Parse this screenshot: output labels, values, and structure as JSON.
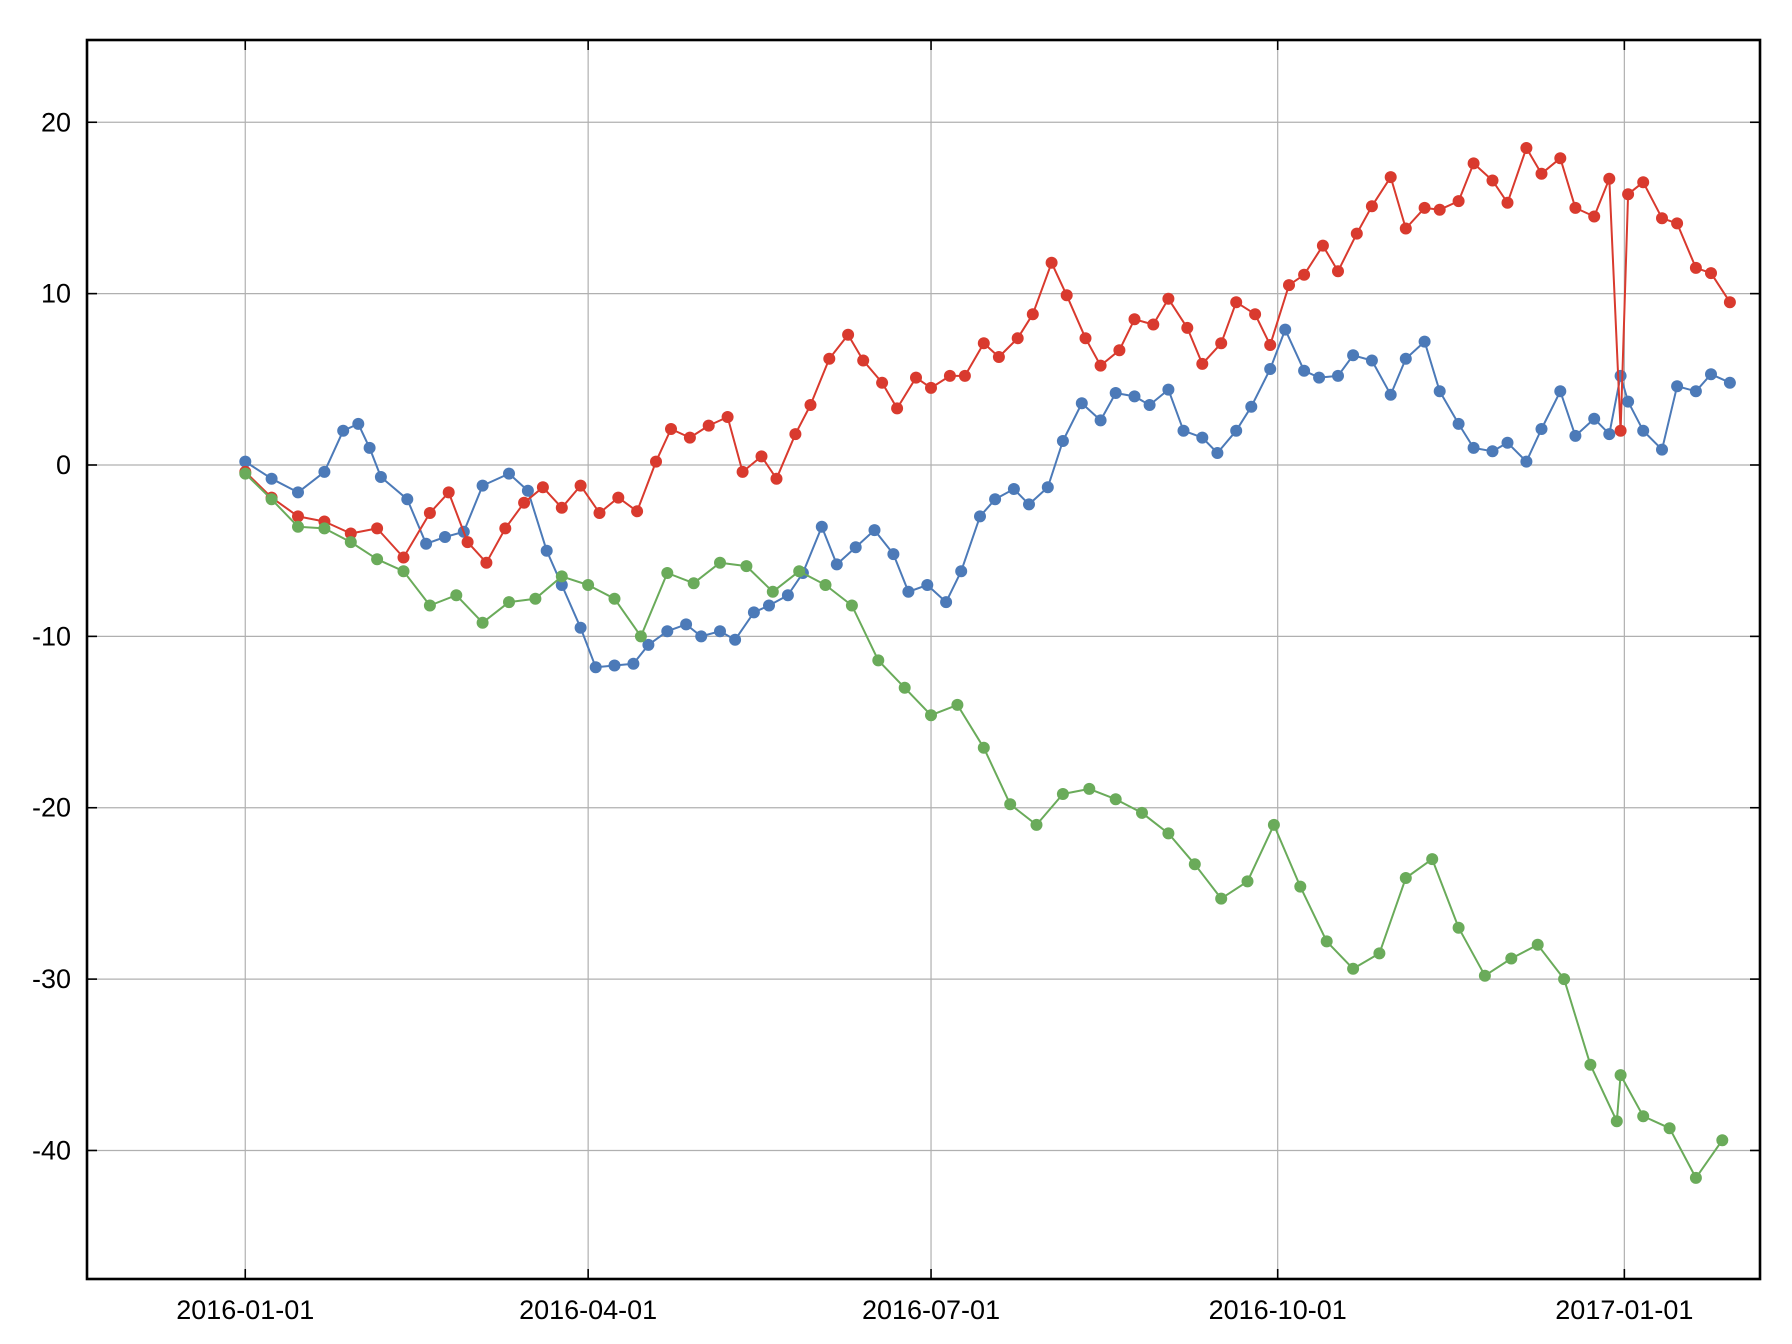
{
  "chart_data": {
    "type": "line",
    "title": "",
    "xlabel": "",
    "ylabel": "",
    "x_axis": {
      "type": "date",
      "range": [
        "2015-11-20",
        "2017-02-06"
      ],
      "ticks": [
        "2016-01-01",
        "2016-04-01",
        "2016-07-01",
        "2016-10-01",
        "2017-01-01"
      ],
      "tick_labels": [
        "2016-01-01",
        "2016-04-01",
        "2016-07-01",
        "2016-10-01",
        "2017-01-01"
      ]
    },
    "y_axis": {
      "range": [
        -47.5,
        24.8
      ],
      "ticks": [
        20,
        10,
        0,
        -10,
        -20,
        -30,
        -40
      ],
      "tick_labels": [
        "20",
        "10",
        "0",
        "-10",
        "-20",
        "-30",
        "-40"
      ]
    },
    "grid": true,
    "legend": null,
    "markers": "filled circles",
    "series": [
      {
        "color": "#4c7ab8",
        "points": [
          [
            "2016-01-01",
            0.2
          ],
          [
            "2016-01-08",
            -0.8
          ],
          [
            "2016-01-15",
            -1.6
          ],
          [
            "2016-01-22",
            -0.4
          ],
          [
            "2016-01-27",
            2.0
          ],
          [
            "2016-01-31",
            2.4
          ],
          [
            "2016-02-03",
            1.0
          ],
          [
            "2016-02-06",
            -0.7
          ],
          [
            "2016-02-13",
            -2.0
          ],
          [
            "2016-02-18",
            -4.6
          ],
          [
            "2016-02-23",
            -4.2
          ],
          [
            "2016-02-28",
            -3.9
          ],
          [
            "2016-03-04",
            -1.2
          ],
          [
            "2016-03-11",
            -0.5
          ],
          [
            "2016-03-16",
            -1.5
          ],
          [
            "2016-03-21",
            -5.0
          ],
          [
            "2016-03-25",
            -7.0
          ],
          [
            "2016-03-30",
            -9.5
          ],
          [
            "2016-04-03",
            -11.8
          ],
          [
            "2016-04-08",
            -11.7
          ],
          [
            "2016-04-13",
            -11.6
          ],
          [
            "2016-04-17",
            -10.5
          ],
          [
            "2016-04-22",
            -9.7
          ],
          [
            "2016-04-27",
            -9.3
          ],
          [
            "2016-05-01",
            -10.0
          ],
          [
            "2016-05-06",
            -9.7
          ],
          [
            "2016-05-10",
            -10.2
          ],
          [
            "2016-05-15",
            -8.6
          ],
          [
            "2016-05-19",
            -8.2
          ],
          [
            "2016-05-24",
            -7.6
          ],
          [
            "2016-05-28",
            -6.3
          ],
          [
            "2016-06-02",
            -3.6
          ],
          [
            "2016-06-06",
            -5.8
          ],
          [
            "2016-06-11",
            -4.8
          ],
          [
            "2016-06-16",
            -3.8
          ],
          [
            "2016-06-21",
            -5.2
          ],
          [
            "2016-06-25",
            -7.4
          ],
          [
            "2016-06-30",
            -7.0
          ],
          [
            "2016-07-05",
            -8.0
          ],
          [
            "2016-07-09",
            -6.2
          ],
          [
            "2016-07-14",
            -3.0
          ],
          [
            "2016-07-18",
            -2.0
          ],
          [
            "2016-07-23",
            -1.4
          ],
          [
            "2016-07-27",
            -2.3
          ],
          [
            "2016-08-01",
            -1.3
          ],
          [
            "2016-08-05",
            1.4
          ],
          [
            "2016-08-10",
            3.6
          ],
          [
            "2016-08-15",
            2.6
          ],
          [
            "2016-08-19",
            4.2
          ],
          [
            "2016-08-24",
            4.0
          ],
          [
            "2016-08-28",
            3.5
          ],
          [
            "2016-09-02",
            4.4
          ],
          [
            "2016-09-06",
            2.0
          ],
          [
            "2016-09-11",
            1.6
          ],
          [
            "2016-09-15",
            0.7
          ],
          [
            "2016-09-20",
            2.0
          ],
          [
            "2016-09-24",
            3.4
          ],
          [
            "2016-09-29",
            5.6
          ],
          [
            "2016-10-03",
            7.9
          ],
          [
            "2016-10-08",
            5.5
          ],
          [
            "2016-10-12",
            5.1
          ],
          [
            "2016-10-17",
            5.2
          ],
          [
            "2016-10-21",
            6.4
          ],
          [
            "2016-10-26",
            6.1
          ],
          [
            "2016-10-31",
            4.1
          ],
          [
            "2016-11-04",
            6.2
          ],
          [
            "2016-11-09",
            7.2
          ],
          [
            "2016-11-13",
            4.3
          ],
          [
            "2016-11-18",
            2.4
          ],
          [
            "2016-11-22",
            1.0
          ],
          [
            "2016-11-27",
            0.8
          ],
          [
            "2016-12-01",
            1.3
          ],
          [
            "2016-12-06",
            0.2
          ],
          [
            "2016-12-10",
            2.1
          ],
          [
            "2016-12-15",
            4.3
          ],
          [
            "2016-12-19",
            1.7
          ],
          [
            "2016-12-24",
            2.7
          ],
          [
            "2016-12-28",
            1.8
          ],
          [
            "2017-01-02",
            3.7
          ],
          [
            "2017-01-06",
            2.0
          ],
          [
            "2017-01-11",
            0.9
          ],
          [
            "2017-01-15",
            4.6
          ],
          [
            "2017-01-20",
            4.3
          ],
          [
            "2017-01-24",
            5.3
          ],
          [
            "2017-01-29",
            4.8
          ],
          [
            "2016-12-31",
            5.2
          ]
        ]
      },
      {
        "color": "#d93a2e",
        "points": [
          [
            "2016-01-01",
            -0.4
          ],
          [
            "2016-01-08",
            -1.9
          ],
          [
            "2016-01-15",
            -3.0
          ],
          [
            "2016-01-22",
            -3.3
          ],
          [
            "2016-01-29",
            -4.0
          ],
          [
            "2016-02-05",
            -3.7
          ],
          [
            "2016-02-12",
            -5.4
          ],
          [
            "2016-02-19",
            -2.8
          ],
          [
            "2016-02-24",
            -1.6
          ],
          [
            "2016-02-29",
            -4.5
          ],
          [
            "2016-03-05",
            -5.7
          ],
          [
            "2016-03-10",
            -3.7
          ],
          [
            "2016-03-15",
            -2.2
          ],
          [
            "2016-03-20",
            -1.3
          ],
          [
            "2016-03-25",
            -2.5
          ],
          [
            "2016-03-30",
            -1.2
          ],
          [
            "2016-04-04",
            -2.8
          ],
          [
            "2016-04-09",
            -1.9
          ],
          [
            "2016-04-14",
            -2.7
          ],
          [
            "2016-04-19",
            0.2
          ],
          [
            "2016-04-23",
            2.1
          ],
          [
            "2016-04-28",
            1.6
          ],
          [
            "2016-05-03",
            2.3
          ],
          [
            "2016-05-08",
            2.8
          ],
          [
            "2016-05-12",
            -0.4
          ],
          [
            "2016-05-17",
            0.5
          ],
          [
            "2016-05-21",
            -0.8
          ],
          [
            "2016-05-26",
            1.8
          ],
          [
            "2016-05-30",
            3.5
          ],
          [
            "2016-06-04",
            6.2
          ],
          [
            "2016-06-09",
            7.6
          ],
          [
            "2016-06-13",
            6.1
          ],
          [
            "2016-06-18",
            4.8
          ],
          [
            "2016-06-22",
            3.3
          ],
          [
            "2016-06-27",
            5.1
          ],
          [
            "2016-07-01",
            4.5
          ],
          [
            "2016-07-06",
            5.2
          ],
          [
            "2016-07-10",
            5.2
          ],
          [
            "2016-07-15",
            7.1
          ],
          [
            "2016-07-19",
            6.3
          ],
          [
            "2016-07-24",
            7.4
          ],
          [
            "2016-07-28",
            8.8
          ],
          [
            "2016-08-02",
            11.8
          ],
          [
            "2016-08-06",
            9.9
          ],
          [
            "2016-08-11",
            7.4
          ],
          [
            "2016-08-15",
            5.8
          ],
          [
            "2016-08-20",
            6.7
          ],
          [
            "2016-08-24",
            8.5
          ],
          [
            "2016-08-29",
            8.2
          ],
          [
            "2016-09-02",
            9.7
          ],
          [
            "2016-09-07",
            8.0
          ],
          [
            "2016-09-11",
            5.9
          ],
          [
            "2016-09-16",
            7.1
          ],
          [
            "2016-09-20",
            9.5
          ],
          [
            "2016-09-25",
            8.8
          ],
          [
            "2016-09-29",
            7.0
          ],
          [
            "2016-10-04",
            10.5
          ],
          [
            "2016-10-08",
            11.1
          ],
          [
            "2016-10-13",
            12.8
          ],
          [
            "2016-10-17",
            11.3
          ],
          [
            "2016-10-22",
            13.5
          ],
          [
            "2016-10-26",
            15.1
          ],
          [
            "2016-10-31",
            16.8
          ],
          [
            "2016-11-04",
            13.8
          ],
          [
            "2016-11-09",
            15.0
          ],
          [
            "2016-11-13",
            14.9
          ],
          [
            "2016-11-18",
            15.4
          ],
          [
            "2016-11-22",
            17.6
          ],
          [
            "2016-11-27",
            16.6
          ],
          [
            "2016-12-01",
            15.3
          ],
          [
            "2016-12-06",
            18.5
          ],
          [
            "2016-12-10",
            17.0
          ],
          [
            "2016-12-15",
            17.9
          ],
          [
            "2016-12-19",
            15.0
          ],
          [
            "2016-12-24",
            14.5
          ],
          [
            "2016-12-28",
            16.7
          ],
          [
            "2017-01-02",
            15.8
          ],
          [
            "2017-01-06",
            16.5
          ],
          [
            "2017-01-11",
            14.4
          ],
          [
            "2017-01-15",
            14.1
          ],
          [
            "2017-01-20",
            11.5
          ],
          [
            "2017-01-24",
            11.2
          ],
          [
            "2017-01-29",
            9.5
          ],
          [
            "2016-12-31",
            2.0
          ]
        ]
      },
      {
        "color": "#6aab5a",
        "points": [
          [
            "2016-01-01",
            -0.5
          ],
          [
            "2016-01-08",
            -2.0
          ],
          [
            "2016-01-15",
            -3.6
          ],
          [
            "2016-01-22",
            -3.7
          ],
          [
            "2016-01-29",
            -4.5
          ],
          [
            "2016-02-05",
            -5.5
          ],
          [
            "2016-02-12",
            -6.2
          ],
          [
            "2016-02-19",
            -8.2
          ],
          [
            "2016-02-26",
            -7.6
          ],
          [
            "2016-03-04",
            -9.2
          ],
          [
            "2016-03-11",
            -8.0
          ],
          [
            "2016-03-18",
            -7.8
          ],
          [
            "2016-03-25",
            -6.5
          ],
          [
            "2016-04-01",
            -7.0
          ],
          [
            "2016-04-08",
            -7.8
          ],
          [
            "2016-04-15",
            -10.0
          ],
          [
            "2016-04-22",
            -6.3
          ],
          [
            "2016-04-29",
            -6.9
          ],
          [
            "2016-05-06",
            -5.7
          ],
          [
            "2016-05-13",
            -5.9
          ],
          [
            "2016-05-20",
            -7.4
          ],
          [
            "2016-05-27",
            -6.2
          ],
          [
            "2016-06-03",
            -7.0
          ],
          [
            "2016-06-10",
            -8.2
          ],
          [
            "2016-06-17",
            -11.4
          ],
          [
            "2016-06-24",
            -13.0
          ],
          [
            "2016-07-01",
            -14.6
          ],
          [
            "2016-07-08",
            -14.0
          ],
          [
            "2016-07-15",
            -16.5
          ],
          [
            "2016-07-22",
            -19.8
          ],
          [
            "2016-07-29",
            -21.0
          ],
          [
            "2016-08-05",
            -19.2
          ],
          [
            "2016-08-12",
            -18.9
          ],
          [
            "2016-08-19",
            -19.5
          ],
          [
            "2016-08-26",
            -20.3
          ],
          [
            "2016-09-02",
            -21.5
          ],
          [
            "2016-09-09",
            -23.3
          ],
          [
            "2016-09-16",
            -25.3
          ],
          [
            "2016-09-23",
            -24.3
          ],
          [
            "2016-09-30",
            -21.0
          ],
          [
            "2016-10-07",
            -24.6
          ],
          [
            "2016-10-14",
            -27.8
          ],
          [
            "2016-10-21",
            -29.4
          ],
          [
            "2016-10-28",
            -28.5
          ],
          [
            "2016-11-04",
            -24.1
          ],
          [
            "2016-11-11",
            -23.0
          ],
          [
            "2016-11-18",
            -27.0
          ],
          [
            "2016-11-25",
            -29.8
          ],
          [
            "2016-12-02",
            -28.8
          ],
          [
            "2016-12-09",
            -28.0
          ],
          [
            "2016-12-16",
            -30.0
          ],
          [
            "2016-12-23",
            -35.0
          ],
          [
            "2016-12-30",
            -38.3
          ],
          [
            "2017-01-06",
            -38.0
          ],
          [
            "2017-01-13",
            -38.7
          ],
          [
            "2017-01-20",
            -41.6
          ],
          [
            "2017-01-27",
            -39.4
          ],
          [
            "2016-12-31",
            -35.6
          ]
        ]
      }
    ]
  }
}
